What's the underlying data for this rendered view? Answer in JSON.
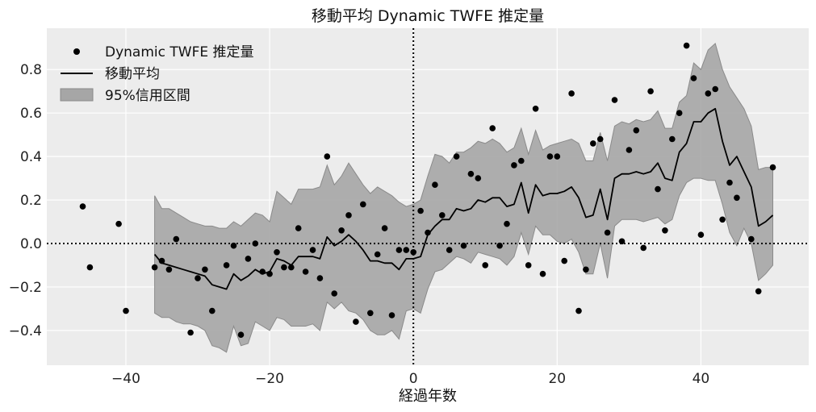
{
  "chart_data": {
    "type": "scatter",
    "title": "移動平均 Dynamic TWFE 推定量",
    "xlabel": "経過年数",
    "ylabel": "",
    "xlim": [
      -51,
      55
    ],
    "ylim": [
      -0.56,
      0.99
    ],
    "xticks": [
      -40,
      -20,
      0,
      20,
      40
    ],
    "yticks": [
      -0.4,
      -0.2,
      0.0,
      0.2,
      0.4,
      0.6,
      0.8
    ],
    "xtick_labels": [
      "−40",
      "−20",
      "0",
      "20",
      "40"
    ],
    "ytick_labels": [
      "−0.4",
      "−0.2",
      "0.0",
      "0.2",
      "0.4",
      "0.6",
      "0.8"
    ],
    "grid": true,
    "legend_position": "top-left",
    "reference_lines": {
      "x": 0,
      "y": 0,
      "style": "dotted"
    },
    "colors": {
      "background": "#ececec",
      "grid": "#ffffff",
      "points": "#000000",
      "line": "#000000",
      "band_fill": "#a6a6a6",
      "band_edge": "#8a8a8a"
    },
    "legend": [
      {
        "label": "Dynamic TWFE 推定量",
        "kind": "marker"
      },
      {
        "label": "移動平均",
        "kind": "line"
      },
      {
        "label": "95%信用区間",
        "kind": "band"
      }
    ],
    "series": [
      {
        "name": "Dynamic TWFE 推定量",
        "kind": "scatter",
        "x": [
          -46,
          -45,
          -41,
          -40,
          -36,
          -35,
          -34,
          -33,
          -31,
          -30,
          -29,
          -28,
          -26,
          -25,
          -24,
          -23,
          -22,
          -21,
          -20,
          -19,
          -18,
          -17,
          -16,
          -15,
          -14,
          -13,
          -12,
          -11,
          -10,
          -9,
          -8,
          -7,
          -6,
          -5,
          -4,
          -3,
          -2,
          -1,
          0,
          1,
          2,
          3,
          4,
          5,
          6,
          7,
          8,
          9,
          10,
          11,
          12,
          13,
          14,
          15,
          16,
          17,
          18,
          19,
          20,
          21,
          22,
          23,
          24,
          25,
          26,
          27,
          28,
          29,
          30,
          31,
          32,
          33,
          34,
          35,
          36,
          37,
          38,
          39,
          40,
          41,
          42,
          43,
          44,
          45,
          47,
          48,
          50
        ],
        "y": [
          0.17,
          -0.11,
          0.09,
          -0.31,
          -0.11,
          -0.08,
          -0.12,
          0.02,
          -0.41,
          -0.16,
          -0.12,
          -0.31,
          -0.1,
          -0.01,
          -0.42,
          -0.07,
          0.0,
          -0.13,
          -0.14,
          -0.04,
          -0.11,
          -0.11,
          0.07,
          -0.13,
          -0.03,
          -0.16,
          0.4,
          -0.23,
          0.06,
          0.13,
          -0.36,
          0.18,
          -0.32,
          -0.05,
          0.07,
          -0.33,
          -0.03,
          -0.03,
          -0.04,
          0.15,
          0.05,
          0.27,
          0.13,
          -0.03,
          0.4,
          -0.01,
          0.32,
          0.3,
          -0.1,
          0.53,
          -0.01,
          0.09,
          0.36,
          0.38,
          -0.1,
          0.62,
          -0.14,
          0.4,
          0.4,
          -0.08,
          0.69,
          -0.31,
          -0.12,
          0.46,
          0.48,
          0.05,
          0.66,
          0.01,
          0.43,
          0.52,
          -0.02,
          0.7,
          0.25,
          0.06,
          0.48,
          0.6,
          0.91,
          0.76,
          0.04,
          0.69,
          0.71,
          0.11,
          0.28,
          0.21,
          0.02,
          -0.22,
          0.35
        ]
      },
      {
        "name": "移動平均",
        "kind": "line",
        "x": [
          -36,
          -35,
          -34,
          -33,
          -32,
          -31,
          -30,
          -29,
          -28,
          -27,
          -26,
          -25,
          -24,
          -23,
          -22,
          -21,
          -20,
          -19,
          -18,
          -17,
          -16,
          -15,
          -14,
          -13,
          -12,
          -11,
          -10,
          -9,
          -8,
          -7,
          -6,
          -5,
          -4,
          -3,
          -2,
          -1,
          0,
          1,
          2,
          3,
          4,
          5,
          6,
          7,
          8,
          9,
          10,
          11,
          12,
          13,
          14,
          15,
          16,
          17,
          18,
          19,
          20,
          21,
          22,
          23,
          24,
          25,
          26,
          27,
          28,
          29,
          30,
          31,
          32,
          33,
          34,
          35,
          36,
          37,
          38,
          39,
          40,
          41,
          42,
          43,
          44,
          45,
          46,
          47,
          48,
          49,
          50
        ],
        "y": [
          -0.05,
          -0.09,
          -0.1,
          -0.11,
          -0.12,
          -0.13,
          -0.14,
          -0.15,
          -0.19,
          -0.2,
          -0.21,
          -0.14,
          -0.17,
          -0.15,
          -0.12,
          -0.14,
          -0.13,
          -0.07,
          -0.08,
          -0.1,
          -0.06,
          -0.06,
          -0.06,
          -0.07,
          0.03,
          -0.01,
          0.01,
          0.04,
          0.01,
          -0.03,
          -0.08,
          -0.08,
          -0.09,
          -0.09,
          -0.12,
          -0.07,
          -0.07,
          -0.06,
          0.04,
          0.08,
          0.11,
          0.11,
          0.16,
          0.15,
          0.16,
          0.2,
          0.19,
          0.21,
          0.21,
          0.17,
          0.18,
          0.28,
          0.14,
          0.27,
          0.22,
          0.23,
          0.23,
          0.24,
          0.26,
          0.21,
          0.12,
          0.13,
          0.25,
          0.11,
          0.3,
          0.32,
          0.32,
          0.33,
          0.32,
          0.33,
          0.37,
          0.3,
          0.29,
          0.42,
          0.46,
          0.56,
          0.56,
          0.6,
          0.62,
          0.47,
          0.36,
          0.4,
          0.33,
          0.26,
          0.08,
          0.1,
          0.13
        ]
      },
      {
        "name": "95%信用区間",
        "kind": "band",
        "x": [
          -36,
          -35,
          -34,
          -33,
          -32,
          -31,
          -30,
          -29,
          -28,
          -27,
          -26,
          -25,
          -24,
          -23,
          -22,
          -21,
          -20,
          -19,
          -18,
          -17,
          -16,
          -15,
          -14,
          -13,
          -12,
          -11,
          -10,
          -9,
          -8,
          -7,
          -6,
          -5,
          -4,
          -3,
          -2,
          -1,
          0,
          1,
          2,
          3,
          4,
          5,
          6,
          7,
          8,
          9,
          10,
          11,
          12,
          13,
          14,
          15,
          16,
          17,
          18,
          19,
          20,
          21,
          22,
          23,
          24,
          25,
          26,
          27,
          28,
          29,
          30,
          31,
          32,
          33,
          34,
          35,
          36,
          37,
          38,
          39,
          40,
          41,
          42,
          43,
          44,
          45,
          46,
          47,
          48,
          49,
          50
        ],
        "lower": [
          -0.32,
          -0.34,
          -0.34,
          -0.36,
          -0.37,
          -0.37,
          -0.38,
          -0.4,
          -0.47,
          -0.48,
          -0.5,
          -0.38,
          -0.47,
          -0.46,
          -0.36,
          -0.38,
          -0.4,
          -0.34,
          -0.35,
          -0.38,
          -0.38,
          -0.38,
          -0.37,
          -0.4,
          -0.27,
          -0.3,
          -0.27,
          -0.31,
          -0.32,
          -0.35,
          -0.4,
          -0.42,
          -0.42,
          -0.4,
          -0.44,
          -0.31,
          -0.3,
          -0.32,
          -0.21,
          -0.13,
          -0.12,
          -0.09,
          -0.06,
          -0.07,
          -0.09,
          -0.04,
          -0.05,
          -0.06,
          -0.07,
          -0.1,
          -0.06,
          0.05,
          -0.05,
          0.08,
          0.04,
          0.04,
          0.01,
          0.0,
          0.02,
          -0.04,
          -0.14,
          -0.14,
          0.0,
          -0.16,
          0.08,
          0.11,
          0.11,
          0.11,
          0.1,
          0.11,
          0.12,
          0.09,
          0.11,
          0.22,
          0.28,
          0.3,
          0.3,
          0.29,
          0.29,
          0.18,
          0.05,
          -0.01,
          0.07,
          0.0,
          -0.17,
          -0.14,
          -0.1
        ],
        "upper": [
          0.22,
          0.16,
          0.16,
          0.14,
          0.12,
          0.1,
          0.09,
          0.08,
          0.08,
          0.07,
          0.07,
          0.1,
          0.08,
          0.11,
          0.14,
          0.13,
          0.1,
          0.24,
          0.21,
          0.18,
          0.25,
          0.25,
          0.25,
          0.26,
          0.36,
          0.27,
          0.31,
          0.37,
          0.32,
          0.27,
          0.23,
          0.26,
          0.24,
          0.22,
          0.19,
          0.17,
          0.18,
          0.2,
          0.31,
          0.41,
          0.4,
          0.37,
          0.42,
          0.42,
          0.44,
          0.47,
          0.46,
          0.48,
          0.46,
          0.42,
          0.44,
          0.53,
          0.41,
          0.52,
          0.43,
          0.45,
          0.46,
          0.47,
          0.48,
          0.46,
          0.38,
          0.38,
          0.51,
          0.38,
          0.54,
          0.56,
          0.55,
          0.57,
          0.56,
          0.57,
          0.61,
          0.53,
          0.53,
          0.65,
          0.68,
          0.83,
          0.8,
          0.89,
          0.92,
          0.8,
          0.72,
          0.67,
          0.62,
          0.54,
          0.34,
          0.35,
          0.35
        ]
      }
    ]
  }
}
